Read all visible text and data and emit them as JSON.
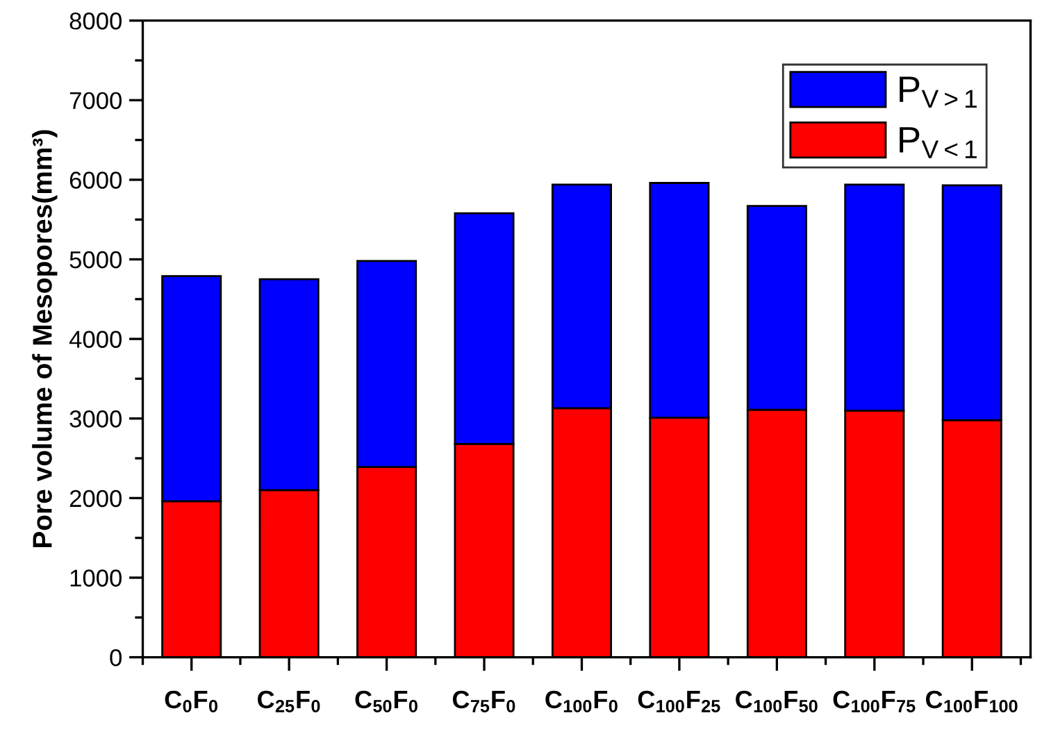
{
  "chart_data": {
    "type": "bar",
    "stacked": true,
    "ylabel": "Pore volume of Mesopores(mm³)",
    "categories": [
      "C$_{0}$F$_{0}$",
      "C$_{25}$F$_{0}$",
      "C$_{50}$F$_{0}$",
      "C$_{75}$F$_{0}$",
      "C$_{100}$F$_{0}$",
      "C$_{100}$F$_{25}$",
      "C$_{100}$F$_{50}$",
      "C$_{100}$F$_{75}$",
      "C$_{100}$F$_{100}$"
    ],
    "series": [
      {
        "name": "P$_{V<1}$",
        "color": "#ff0000",
        "values": [
          1960,
          2100,
          2390,
          2680,
          3130,
          3010,
          3110,
          3100,
          2980
        ]
      },
      {
        "name": "P$_{V>1}$",
        "color": "#0000ff",
        "values": [
          2830,
          2650,
          2590,
          2900,
          2810,
          2950,
          2560,
          2840,
          2950
        ]
      }
    ],
    "ylim": [
      0,
      8000
    ],
    "yticks": [
      0,
      {
        "value": 500,
        "label": null
      },
      1000,
      {
        "value": 1500,
        "label": null
      },
      2000,
      {
        "value": 2500,
        "label": null
      },
      3000,
      {
        "value": 3500,
        "label": null
      },
      4000,
      {
        "value": 4500,
        "label": null
      },
      5000,
      {
        "value": 5500,
        "label": null
      },
      6000,
      {
        "value": 6500,
        "label": null
      },
      7000,
      {
        "value": 7500,
        "label": null
      },
      8000
    ],
    "grid": false,
    "legend": "top right"
  }
}
